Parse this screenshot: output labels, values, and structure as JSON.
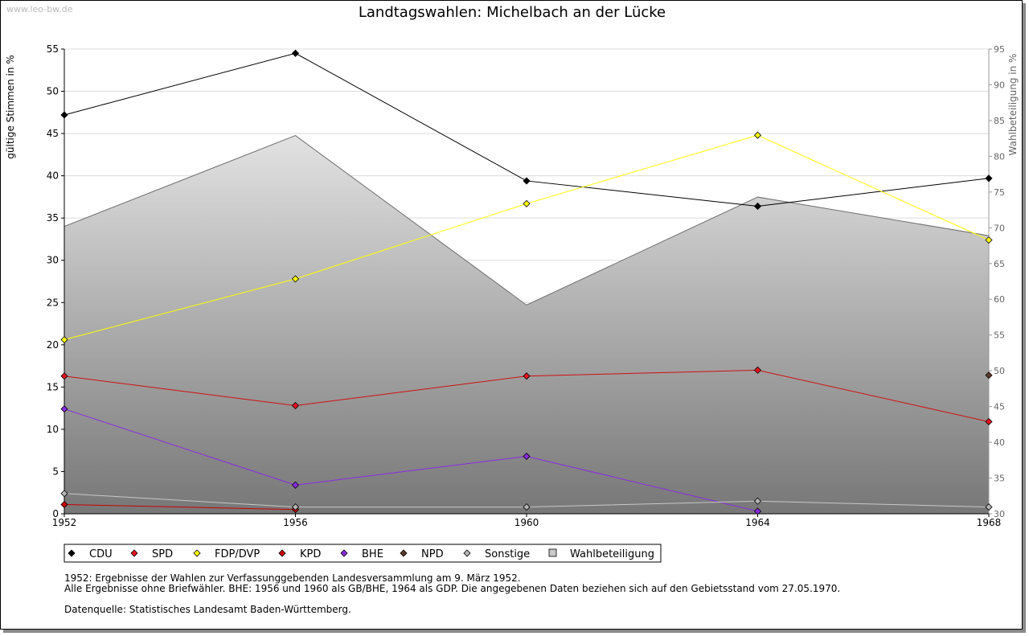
{
  "watermark": "www.leo-bw.de",
  "chart_data": {
    "type": "line",
    "title": "Landtagswahlen: Michelbach an der Lücke",
    "ylabel": "gültige Stimmen in %",
    "y2label": "Wahlbeteiligung in %",
    "ylim": [
      0,
      55
    ],
    "y2lim": [
      30,
      95
    ],
    "yticks": [
      0,
      5,
      10,
      15,
      20,
      25,
      30,
      35,
      40,
      45,
      50,
      55
    ],
    "y2ticks": [
      30,
      35,
      40,
      45,
      50,
      55,
      60,
      65,
      70,
      75,
      80,
      85,
      90,
      95
    ],
    "grid": true,
    "categories": [
      "1952",
      "1956",
      "1960",
      "1964",
      "1968"
    ],
    "turnout": {
      "name": "Wahlbeteiligung",
      "values": [
        70.2,
        82.9,
        59.2,
        74.3,
        68.9
      ],
      "fill_top": "#e2e2e2",
      "fill_bottom": "#777777",
      "line": "#6e6e6e"
    },
    "series": [
      {
        "name": "CDU",
        "color": "#000000",
        "line": "#000000",
        "values": [
          47.2,
          54.5,
          39.4,
          36.4,
          39.7
        ]
      },
      {
        "name": "SPD",
        "color": "#e8141e",
        "line": "#d01010",
        "values": [
          16.3,
          12.8,
          16.3,
          17.0,
          10.9
        ]
      },
      {
        "name": "FDP/DVP",
        "color": "#ffff00",
        "line": "#ffff00",
        "values": [
          20.6,
          27.8,
          36.7,
          44.8,
          32.4
        ]
      },
      {
        "name": "KPD",
        "color": "#cc0000",
        "line": "#cc0000",
        "values": [
          1.1,
          0.5,
          null,
          null,
          null
        ]
      },
      {
        "name": "BHE",
        "color": "#8a2be2",
        "line": "#8a2be2",
        "values": [
          12.4,
          3.4,
          6.8,
          0.3,
          null
        ]
      },
      {
        "name": "NPD",
        "color": "#5a3a2a",
        "line": "#5a3a2a",
        "values": [
          null,
          null,
          null,
          null,
          16.4
        ]
      },
      {
        "name": "Sonstige",
        "color": "#b4b4b4",
        "line": "#c8c8c8",
        "values": [
          2.4,
          0.8,
          0.8,
          1.5,
          0.8
        ]
      }
    ]
  },
  "notes": {
    "line1": "1952: Ergebnisse der Wahlen zur Verfassunggebenden Landesversammlung am 9. März 1952.",
    "line2": "Alle Ergebnisse ohne Briefwähler. BHE: 1956 und 1960 als GB/BHE, 1964 als GDP. Die angegebenen Daten beziehen sich auf den Gebietsstand vom 27.05.1970.",
    "source": "Datenquelle: Statistisches Landesamt Baden-Württemberg."
  }
}
